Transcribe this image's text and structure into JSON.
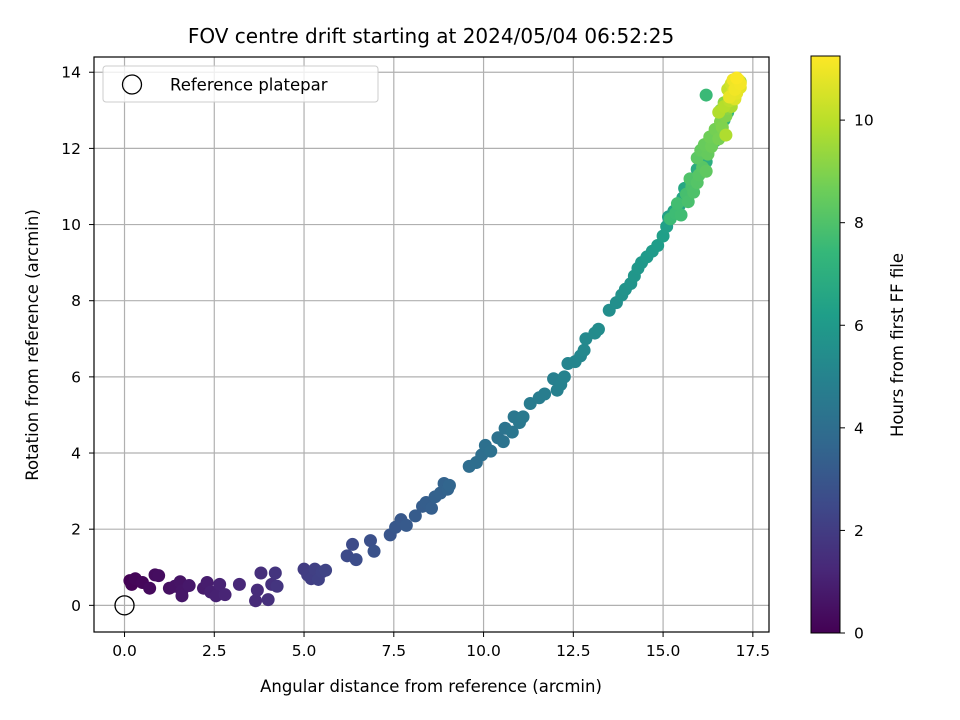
{
  "chart_data": {
    "type": "scatter",
    "title": "FOV centre drift starting at 2024/05/04 06:52:25",
    "xlabel": "Angular distance from reference (arcmin)",
    "ylabel": "Rotation from reference (arcmin)",
    "xlim": [
      -0.85,
      17.95
    ],
    "ylim": [
      -0.7,
      14.4
    ],
    "xticks": [
      0.0,
      2.5,
      5.0,
      7.5,
      10.0,
      12.5,
      15.0,
      17.5
    ],
    "xtick_labels": [
      "0.0",
      "2.5",
      "5.0",
      "7.5",
      "10.0",
      "12.5",
      "15.0",
      "17.5"
    ],
    "yticks": [
      0,
      2,
      4,
      6,
      8,
      10,
      12,
      14
    ],
    "ytick_labels": [
      "0",
      "2",
      "4",
      "6",
      "8",
      "10",
      "12",
      "14"
    ],
    "grid": true,
    "legend": {
      "position": "top-left",
      "entries": [
        "Reference platepar"
      ]
    },
    "reference_point": {
      "x": 0.0,
      "y": 0.0
    },
    "colorbar": {
      "label": "Hours from first FF file",
      "colormap": "viridis",
      "range": [
        0,
        11.25
      ],
      "ticks": [
        0,
        2,
        4,
        6,
        8,
        10
      ],
      "tick_labels": [
        "0",
        "2",
        "4",
        "6",
        "8",
        "10"
      ]
    },
    "series": [
      {
        "columns": [
          "x",
          "y",
          "hours"
        ],
        "points": [
          [
            0.15,
            0.65,
            0.0
          ],
          [
            0.2,
            0.55,
            0.08
          ],
          [
            0.3,
            0.7,
            0.15
          ],
          [
            0.5,
            0.6,
            0.2
          ],
          [
            0.7,
            0.45,
            0.3
          ],
          [
            0.85,
            0.8,
            0.35
          ],
          [
            0.95,
            0.78,
            0.4
          ],
          [
            1.25,
            0.45,
            0.5
          ],
          [
            1.4,
            0.5,
            0.55
          ],
          [
            1.55,
            0.62,
            0.6
          ],
          [
            1.6,
            0.38,
            0.65
          ],
          [
            1.6,
            0.25,
            0.7
          ],
          [
            1.8,
            0.52,
            0.75
          ],
          [
            2.2,
            0.45,
            0.85
          ],
          [
            2.3,
            0.6,
            0.9
          ],
          [
            2.4,
            0.35,
            1.0
          ],
          [
            2.55,
            0.25,
            1.05
          ],
          [
            2.65,
            0.55,
            1.1
          ],
          [
            2.8,
            0.28,
            1.15
          ],
          [
            3.2,
            0.55,
            1.25
          ],
          [
            3.65,
            0.12,
            1.35
          ],
          [
            3.7,
            0.4,
            1.4
          ],
          [
            3.8,
            0.85,
            1.5
          ],
          [
            4.0,
            0.15,
            1.55
          ],
          [
            4.1,
            0.55,
            1.6
          ],
          [
            4.2,
            0.85,
            1.7
          ],
          [
            4.25,
            0.5,
            1.75
          ],
          [
            5.0,
            0.95,
            2.0
          ],
          [
            5.1,
            0.8,
            2.05
          ],
          [
            5.2,
            0.7,
            2.1
          ],
          [
            5.3,
            0.95,
            2.15
          ],
          [
            5.4,
            0.68,
            2.2
          ],
          [
            5.5,
            0.88,
            2.25
          ],
          [
            5.6,
            0.92,
            2.3
          ],
          [
            6.2,
            1.3,
            2.55
          ],
          [
            6.35,
            1.6,
            2.6
          ],
          [
            6.45,
            1.2,
            2.65
          ],
          [
            6.85,
            1.7,
            2.8
          ],
          [
            6.95,
            1.42,
            2.85
          ],
          [
            7.4,
            1.85,
            3.0
          ],
          [
            7.55,
            2.05,
            3.05
          ],
          [
            7.7,
            2.25,
            3.1
          ],
          [
            7.85,
            2.1,
            3.2
          ],
          [
            8.1,
            2.35,
            3.25
          ],
          [
            8.3,
            2.6,
            3.3
          ],
          [
            8.4,
            2.7,
            3.35
          ],
          [
            8.55,
            2.55,
            3.4
          ],
          [
            8.65,
            2.85,
            3.45
          ],
          [
            8.8,
            2.95,
            3.5
          ],
          [
            8.9,
            3.2,
            3.55
          ],
          [
            9.0,
            3.05,
            3.6
          ],
          [
            9.05,
            3.15,
            3.65
          ],
          [
            9.6,
            3.65,
            4.0
          ],
          [
            9.8,
            3.75,
            4.05
          ],
          [
            9.95,
            3.95,
            4.1
          ],
          [
            10.05,
            4.2,
            4.15
          ],
          [
            10.2,
            4.05,
            4.2
          ],
          [
            10.4,
            4.4,
            4.25
          ],
          [
            10.55,
            4.3,
            4.3
          ],
          [
            10.6,
            4.65,
            4.35
          ],
          [
            10.8,
            4.55,
            4.4
          ],
          [
            10.85,
            4.95,
            4.45
          ],
          [
            11.0,
            4.8,
            4.5
          ],
          [
            11.1,
            4.95,
            4.55
          ],
          [
            11.3,
            5.3,
            4.65
          ],
          [
            11.55,
            5.45,
            4.7
          ],
          [
            11.7,
            5.55,
            4.75
          ],
          [
            11.95,
            5.95,
            4.85
          ],
          [
            12.05,
            5.65,
            4.9
          ],
          [
            12.15,
            5.8,
            4.95
          ],
          [
            12.25,
            6.0,
            5.0
          ],
          [
            12.35,
            6.35,
            5.1
          ],
          [
            12.55,
            6.4,
            5.15
          ],
          [
            12.7,
            6.55,
            5.2
          ],
          [
            12.8,
            6.7,
            5.25
          ],
          [
            12.85,
            7.0,
            5.3
          ],
          [
            13.1,
            7.15,
            5.4
          ],
          [
            13.2,
            7.25,
            5.45
          ],
          [
            13.5,
            7.75,
            5.55
          ],
          [
            13.7,
            7.95,
            5.6
          ],
          [
            13.85,
            8.15,
            5.7
          ],
          [
            13.95,
            8.3,
            5.75
          ],
          [
            14.1,
            8.45,
            5.8
          ],
          [
            14.2,
            8.65,
            5.9
          ],
          [
            14.3,
            8.85,
            5.95
          ],
          [
            14.4,
            9.0,
            6.0
          ],
          [
            14.55,
            9.15,
            6.05
          ],
          [
            14.7,
            9.3,
            6.1
          ],
          [
            14.85,
            9.45,
            6.2
          ],
          [
            15.0,
            9.7,
            6.3
          ],
          [
            15.1,
            9.95,
            6.35
          ],
          [
            15.15,
            10.2,
            6.4
          ],
          [
            15.3,
            10.35,
            6.5
          ],
          [
            15.45,
            10.5,
            6.6
          ],
          [
            15.55,
            10.7,
            6.65
          ],
          [
            15.6,
            10.95,
            6.7
          ],
          [
            15.75,
            11.05,
            6.75
          ],
          [
            15.9,
            11.2,
            6.85
          ],
          [
            15.95,
            11.45,
            6.9
          ],
          [
            16.05,
            11.6,
            6.95
          ],
          [
            16.15,
            11.85,
            7.0
          ],
          [
            16.2,
            11.65,
            7.05
          ],
          [
            16.3,
            12.05,
            7.1
          ],
          [
            16.45,
            12.2,
            7.15
          ],
          [
            16.5,
            12.45,
            7.2
          ],
          [
            16.6,
            12.6,
            7.25
          ],
          [
            16.7,
            12.75,
            7.3
          ],
          [
            16.8,
            12.95,
            7.35
          ],
          [
            16.85,
            13.15,
            7.4
          ],
          [
            16.9,
            13.3,
            7.45
          ],
          [
            17.0,
            13.55,
            7.5
          ],
          [
            17.1,
            13.7,
            7.55
          ],
          [
            16.2,
            13.4,
            7.6
          ],
          [
            15.2,
            10.15,
            7.65
          ],
          [
            15.35,
            10.3,
            7.7
          ],
          [
            15.5,
            10.25,
            7.75
          ],
          [
            15.4,
            10.55,
            7.8
          ],
          [
            15.65,
            10.8,
            7.9
          ],
          [
            15.7,
            10.6,
            7.95
          ],
          [
            15.8,
            11.0,
            8.0
          ],
          [
            15.85,
            10.85,
            8.05
          ],
          [
            15.75,
            11.2,
            8.1
          ],
          [
            15.95,
            11.1,
            8.2
          ],
          [
            16.0,
            11.3,
            8.25
          ],
          [
            16.1,
            11.5,
            8.3
          ],
          [
            15.95,
            11.75,
            8.35
          ],
          [
            16.2,
            11.4,
            8.45
          ],
          [
            16.05,
            11.95,
            8.5
          ],
          [
            16.25,
            11.85,
            8.55
          ],
          [
            16.15,
            12.1,
            8.6
          ],
          [
            16.35,
            12.05,
            8.7
          ],
          [
            16.3,
            12.3,
            8.75
          ],
          [
            16.45,
            12.5,
            8.85
          ],
          [
            16.55,
            12.25,
            8.9
          ],
          [
            16.6,
            12.7,
            9.0
          ],
          [
            16.65,
            12.55,
            9.05
          ],
          [
            16.75,
            12.85,
            9.1
          ],
          [
            16.6,
            13.0,
            9.2
          ],
          [
            16.8,
            13.05,
            9.25
          ],
          [
            16.7,
            13.2,
            9.3
          ],
          [
            16.9,
            13.45,
            9.35
          ],
          [
            16.85,
            13.6,
            9.45
          ],
          [
            17.0,
            13.35,
            9.5
          ],
          [
            16.95,
            13.7,
            9.55
          ],
          [
            17.05,
            13.5,
            9.6
          ],
          [
            17.15,
            13.75,
            9.7
          ],
          [
            17.1,
            13.6,
            9.75
          ],
          [
            16.9,
            13.1,
            9.8
          ],
          [
            16.75,
            12.35,
            9.9
          ],
          [
            16.55,
            12.95,
            9.95
          ],
          [
            16.7,
            13.1,
            10.0
          ],
          [
            16.85,
            13.25,
            10.1
          ],
          [
            16.95,
            13.4,
            10.15
          ],
          [
            17.0,
            13.65,
            10.2
          ],
          [
            16.8,
            13.55,
            10.3
          ],
          [
            17.05,
            13.75,
            10.4
          ],
          [
            16.9,
            13.7,
            10.5
          ],
          [
            17.1,
            13.65,
            10.55
          ],
          [
            16.95,
            13.5,
            10.6
          ],
          [
            17.0,
            13.3,
            10.7
          ],
          [
            17.15,
            13.6,
            10.8
          ],
          [
            17.05,
            13.45,
            10.85
          ],
          [
            16.85,
            13.35,
            10.9
          ],
          [
            17.1,
            13.8,
            10.95
          ],
          [
            16.95,
            13.8,
            11.0
          ],
          [
            17.0,
            13.55,
            11.05
          ],
          [
            17.15,
            13.7,
            11.1
          ],
          [
            17.05,
            13.85,
            11.2
          ]
        ]
      }
    ]
  }
}
